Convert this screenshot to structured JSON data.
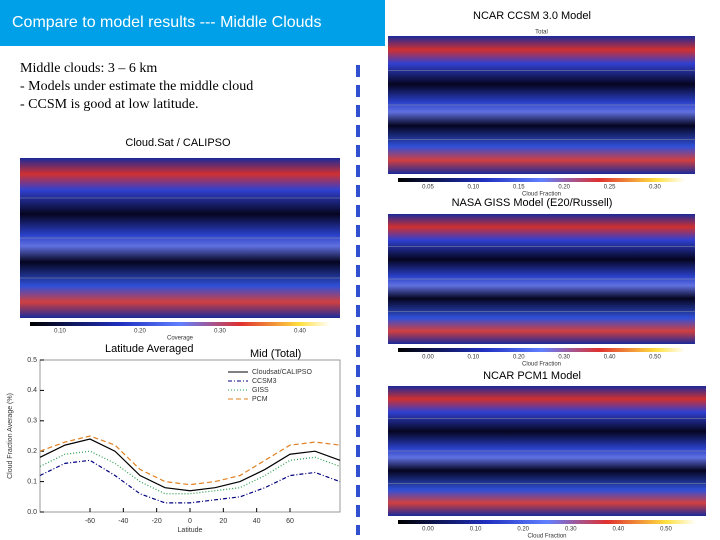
{
  "header": {
    "title": "Compare to model results --- Middle Clouds"
  },
  "notes": [
    "Middle clouds: 3 – 6 km",
    "- Models under estimate the middle cloud",
    "- CCSM is good at low latitude."
  ],
  "panels": [
    {
      "title": "Cloud.Sat / CALIPSO",
      "colorbar_label": "Coverage",
      "colorbar_ticks": [
        "0.10",
        "0.20",
        "0.30",
        "0.40"
      ]
    },
    {
      "title": "NCAR CCSM 3.0 Model",
      "map_label": "Total",
      "colorbar_label": "Cloud Fraction",
      "colorbar_ticks": [
        "0.05",
        "0.10",
        "0.15",
        "0.20",
        "0.25",
        "0.30"
      ]
    },
    {
      "title": "NASA GISS Model   (E20/Russell)",
      "colorbar_label": "Cloud Fraction",
      "colorbar_ticks": [
        "0.00",
        "0.10",
        "0.20",
        "0.30",
        "0.40",
        "0.50"
      ]
    },
    {
      "title": "NCAR PCM1 Model",
      "colorbar_label": "Cloud Fraction",
      "colorbar_ticks": [
        "0.00",
        "0.10",
        "0.20",
        "0.30",
        "0.40",
        "0.50"
      ]
    }
  ],
  "chart_data": {
    "type": "line",
    "title": "Latitude Averaged",
    "subtitle": "Mid (Total)",
    "x_label": "Latitude",
    "y_label": "Cloud Fraction Average (%)",
    "x": [
      -90,
      -75,
      -60,
      -45,
      -30,
      -15,
      0,
      15,
      30,
      45,
      60,
      75,
      90
    ],
    "series": [
      {
        "name": "Cloudsat/CALIPSO",
        "color": "#000000",
        "dash": "none",
        "values": [
          0.18,
          0.22,
          0.24,
          0.2,
          0.12,
          0.08,
          0.07,
          0.08,
          0.1,
          0.14,
          0.19,
          0.2,
          0.17
        ]
      },
      {
        "name": "CCSM3",
        "color": "#000080",
        "dash": "4 2 1 2",
        "values": [
          0.12,
          0.16,
          0.17,
          0.12,
          0.06,
          0.03,
          0.03,
          0.04,
          0.05,
          0.08,
          0.12,
          0.13,
          0.1
        ]
      },
      {
        "name": "GISS",
        "color": "#2a9d4a",
        "dash": "1 2",
        "values": [
          0.15,
          0.19,
          0.2,
          0.16,
          0.1,
          0.06,
          0.06,
          0.07,
          0.08,
          0.12,
          0.17,
          0.18,
          0.15
        ]
      },
      {
        "name": "PCM",
        "color": "#e08020",
        "dash": "5 3",
        "values": [
          0.2,
          0.23,
          0.25,
          0.22,
          0.14,
          0.1,
          0.09,
          0.1,
          0.12,
          0.17,
          0.22,
          0.23,
          0.22
        ]
      }
    ],
    "xlim": [
      -90,
      90
    ],
    "xticks": [
      -60,
      -40,
      -20,
      0,
      20,
      40,
      60
    ],
    "ylim": [
      0,
      0.5
    ],
    "yticks": [
      {
        "value": 0,
        "label": "0.0"
      },
      0.1,
      0.2,
      0.3,
      0.4,
      0.5
    ]
  }
}
